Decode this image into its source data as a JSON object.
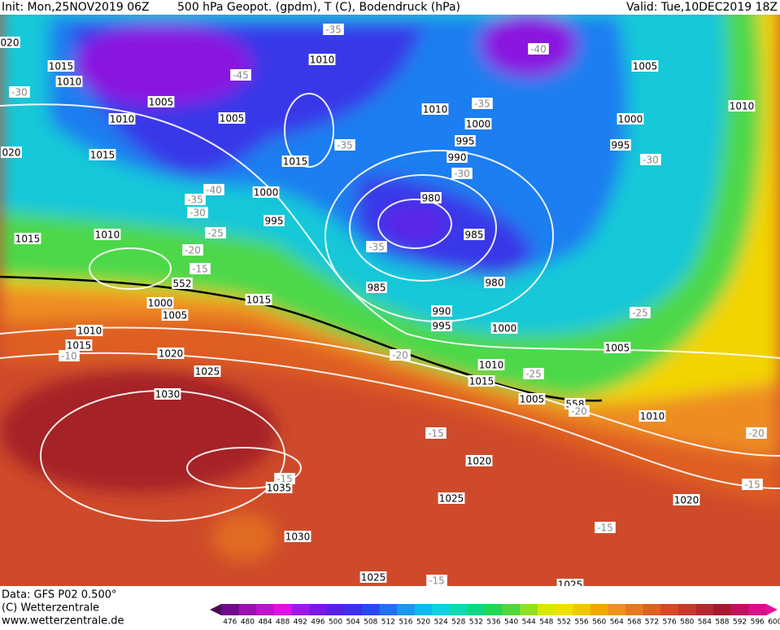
{
  "header": {
    "init": "Init: Mon,25NOV2019 06Z",
    "fields": "500 hPa Geopot. (gpdm), T (C), Bodendruck (hPa)",
    "valid": "Valid: Tue,10DEC2019 18Z"
  },
  "map": {
    "labels": [
      "020",
      "1015",
      "1010",
      "-30",
      "1005",
      "1010",
      "1005",
      "-45",
      "1010",
      "-35",
      "-40",
      "1005",
      "1010",
      "1010",
      "-35",
      "1000",
      "1000",
      "995",
      "995",
      "990",
      "-30",
      "-30",
      "020",
      "1015",
      "1015",
      "-35",
      "-40",
      "1000",
      "-35",
      "-30",
      "980",
      "995",
      "985",
      "-25",
      "1015",
      "1010",
      "-20",
      "-35",
      "-15",
      "552",
      "980",
      "985",
      "1000",
      "1005",
      "1015",
      "990",
      "995",
      "1000",
      "-25",
      "1010",
      "1015",
      "-10",
      "1020",
      "-20",
      "1005",
      "1010",
      "-25",
      "1025",
      "1015",
      "1030",
      "1005",
      "558",
      "-20",
      "1010",
      "-15",
      "-20",
      "1020",
      "-15",
      "1035",
      "-15",
      "1025",
      "1020",
      "-15",
      "1030",
      "1025",
      "-15",
      "1025"
    ]
  },
  "footer": {
    "data": "Data: GFS P02 0.500°",
    "copyright": "(C) Wetterzentrale",
    "url": "www.wetterzentrale.de"
  },
  "colorbar": {
    "labels": [
      "476",
      "480",
      "484",
      "488",
      "492",
      "496",
      "500",
      "504",
      "508",
      "512",
      "516",
      "520",
      "524",
      "528",
      "532",
      "536",
      "540",
      "544",
      "548",
      "552",
      "556",
      "560",
      "564",
      "568",
      "572",
      "576",
      "580",
      "584",
      "588",
      "592",
      "596",
      "600"
    ],
    "colors": [
      "#4a0a5a",
      "#700a8a",
      "#9a10b0",
      "#c010d0",
      "#e010e8",
      "#a018e8",
      "#7a18e8",
      "#5a20e8",
      "#3c30f0",
      "#2848f0",
      "#2070f0",
      "#1898f0",
      "#10b8f0",
      "#10d0e0",
      "#10d8b0",
      "#10d880",
      "#20d850",
      "#50d838",
      "#90e020",
      "#d8e800",
      "#f0e000",
      "#f0c800",
      "#f0a800",
      "#f09020",
      "#e87820",
      "#e06020",
      "#d84828",
      "#c83828",
      "#b82830",
      "#a81830",
      "#c01060",
      "#d8108a",
      "#e81098"
    ]
  }
}
